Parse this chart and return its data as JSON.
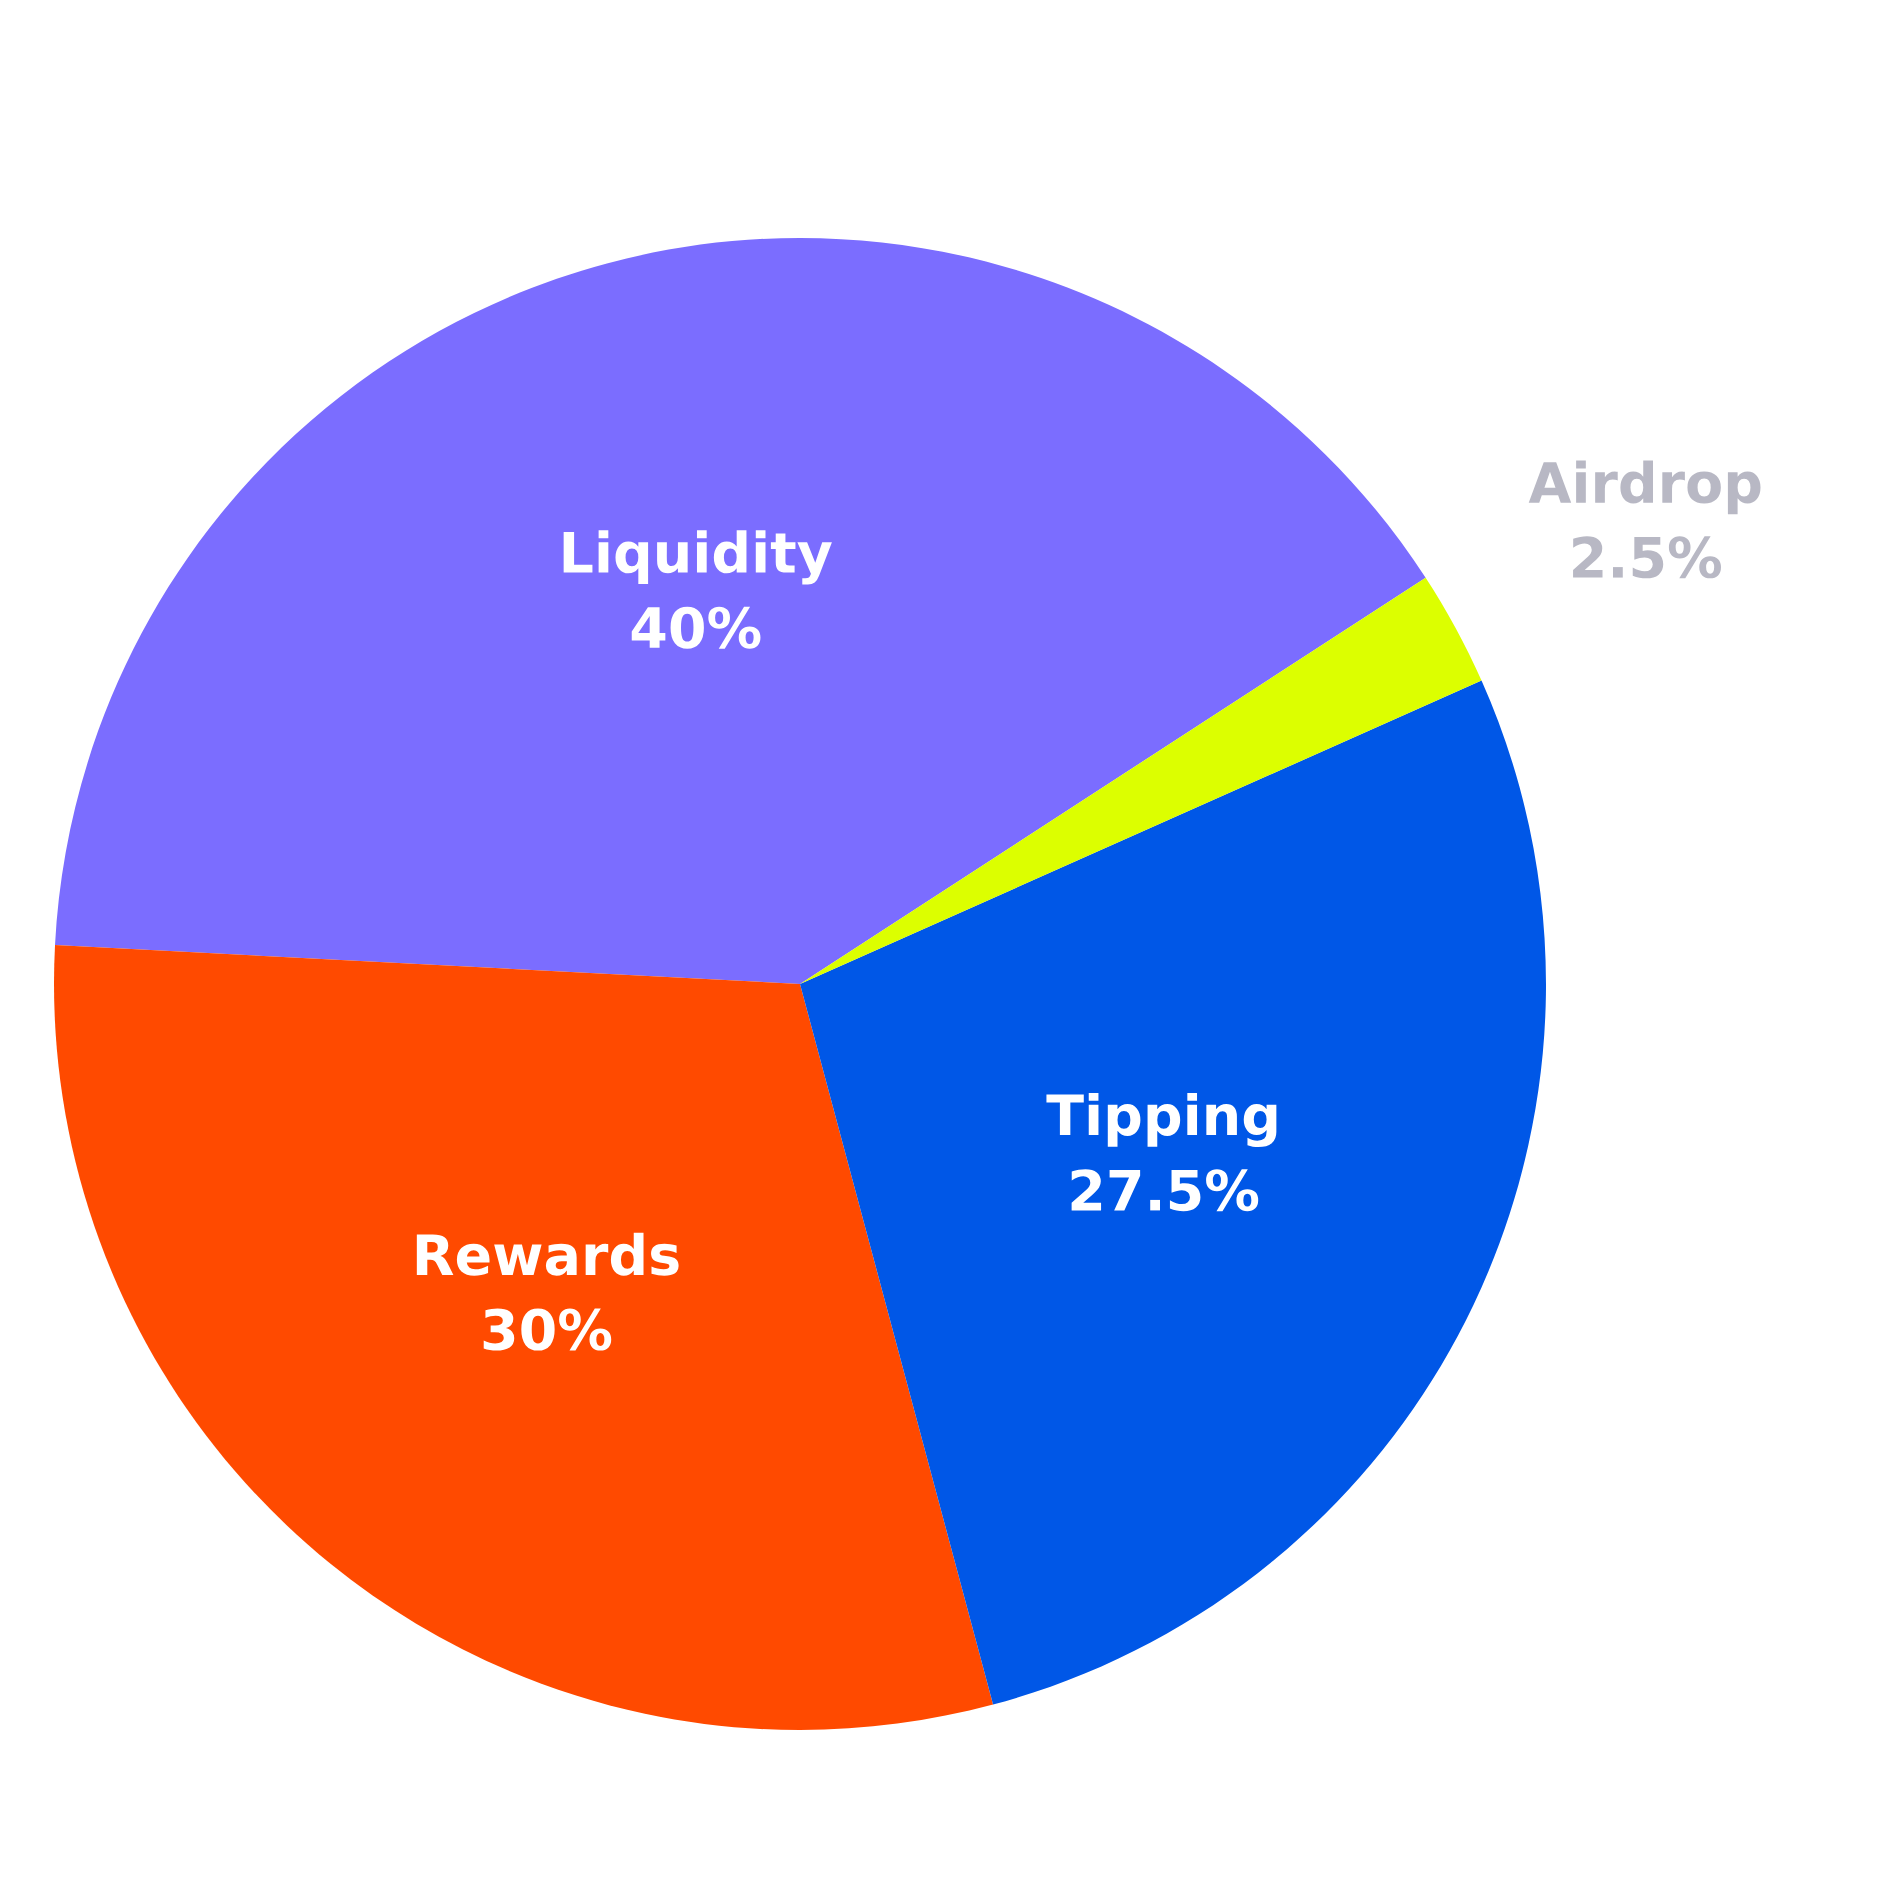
{
  "chart_data": {
    "type": "pie",
    "categories": [
      "Liquidity",
      "Rewards",
      "Tipping",
      "Airdrop"
    ],
    "values": [
      40,
      30,
      27.5,
      2.5
    ],
    "colors": [
      "#7b6dff",
      "#ff4a00",
      "#0057e7",
      "#dcff00"
    ],
    "value_labels": [
      "40%",
      "30%",
      "27.5%",
      "2.5%"
    ]
  }
}
